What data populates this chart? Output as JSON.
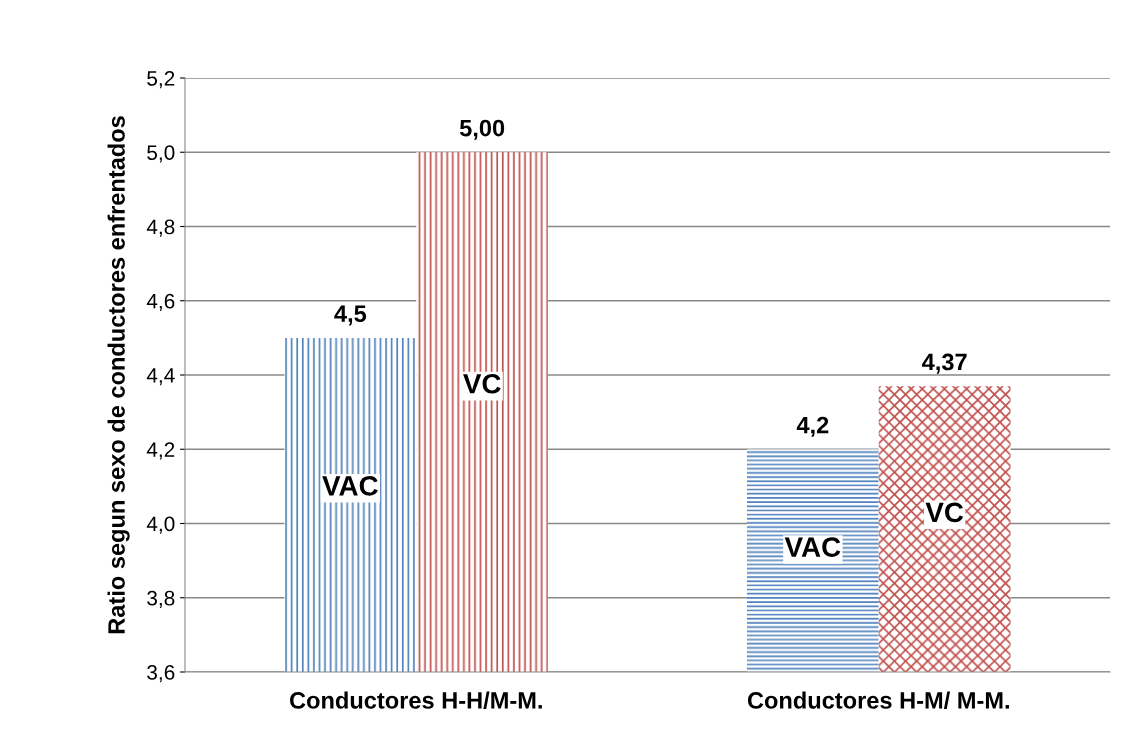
{
  "chart_data": {
    "type": "bar",
    "ylabel": "Ratio segun sexo de conductores enfrentados",
    "categories": [
      "Conductores H-H/M-M.",
      "Conductores H-M/ M-M."
    ],
    "series": [
      {
        "name": "VAC",
        "color": "#4f81bd",
        "values": [
          4.5,
          4.2
        ],
        "value_labels": [
          "4,5",
          "4,2"
        ]
      },
      {
        "name": "VC",
        "color": "#c0504d",
        "values": [
          5.0,
          4.37
        ],
        "value_labels": [
          "5,00",
          "4,37"
        ]
      }
    ],
    "ylim": [
      3.6,
      5.2
    ],
    "yticks": [
      {
        "value": 3.6,
        "label": "3,6"
      },
      {
        "value": 3.8,
        "label": "3,8"
      },
      {
        "value": 4.0,
        "label": "4,0"
      },
      {
        "value": 4.2,
        "label": "4,2"
      },
      {
        "value": 4.4,
        "label": "4,4"
      },
      {
        "value": 4.6,
        "label": "4,6"
      },
      {
        "value": 4.8,
        "label": "4,8"
      },
      {
        "value": 5.0,
        "label": "5,0"
      },
      {
        "value": 5.2,
        "label": "5,2"
      }
    ],
    "grid": "y",
    "legend": false
  }
}
